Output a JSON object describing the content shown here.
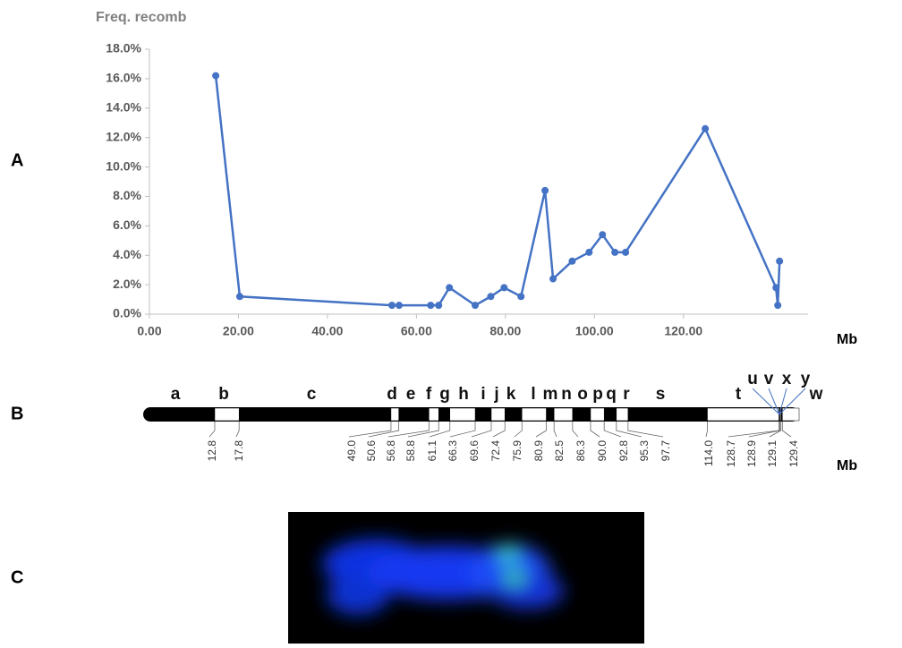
{
  "panels": [
    "A",
    "B",
    "C"
  ],
  "chart_data": {
    "type": "line",
    "title": "Freq. recomb",
    "x_label": "Mb",
    "color": "#4472c4",
    "x": [
      14.9,
      20.3,
      54.5,
      56.1,
      63.2,
      65.0,
      67.4,
      73.2,
      76.7,
      79.7,
      83.5,
      88.9,
      90.7,
      95.0,
      98.8,
      101.8,
      104.6,
      107.0,
      124.9,
      140.8,
      141.2,
      141.6
    ],
    "values": [
      16.2,
      1.2,
      0.6,
      0.6,
      0.6,
      0.6,
      1.8,
      0.6,
      1.2,
      1.8,
      1.2,
      8.4,
      2.4,
      3.6,
      4.2,
      5.4,
      4.2,
      4.2,
      12.6,
      1.8,
      0.6,
      3.6
    ],
    "xlim": [
      0,
      148
    ],
    "ylim": [
      0,
      18
    ],
    "xticks": [
      {
        "value": 0,
        "label": "0.00"
      },
      {
        "value": 20,
        "label": "20.00"
      },
      {
        "value": 40,
        "label": "40.00"
      },
      {
        "value": 60,
        "label": "60.00"
      },
      {
        "value": 80,
        "label": "80.00"
      },
      {
        "value": 100,
        "label": "100.00"
      },
      {
        "value": 120,
        "label": "120.00"
      }
    ],
    "yticks": [
      {
        "value": 0,
        "label": "0.0%"
      },
      {
        "value": 2,
        "label": "2.0%"
      },
      {
        "value": 4,
        "label": "4.0%"
      },
      {
        "value": 6,
        "label": "6.0%"
      },
      {
        "value": 8,
        "label": "8.0%"
      },
      {
        "value": 10,
        "label": "10.0%"
      },
      {
        "value": 12,
        "label": "12.0%"
      },
      {
        "value": 14,
        "label": "14.0%"
      },
      {
        "value": 16,
        "label": "16.0%"
      },
      {
        "value": 18,
        "label": "18.0%"
      }
    ]
  },
  "ideogram": {
    "bands": [
      "a",
      "b",
      "c",
      "d",
      "e",
      "f",
      "g",
      "h",
      "i",
      "j",
      "k",
      "l",
      "m",
      "n",
      "o",
      "p",
      "q",
      "r",
      "s",
      "t",
      "u",
      "v",
      "w",
      "x",
      "y"
    ],
    "positions": [
      "12.8",
      "17.8",
      "49.0",
      "50.6",
      "56.8",
      "58.8",
      "61.1",
      "66.3",
      "69.6",
      "72.4",
      "75.9",
      "80.9",
      "82.5",
      "86.3",
      "90.0",
      "92.8",
      "95.3",
      "97.7",
      "114.0",
      "128.7",
      "128.9",
      "129.1",
      "129.4"
    ],
    "unit": "Mb"
  }
}
